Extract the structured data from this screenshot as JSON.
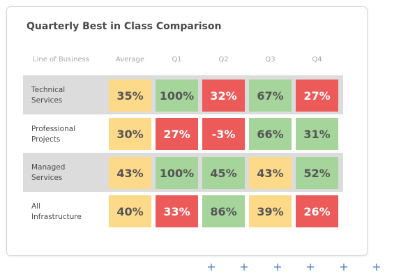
{
  "title": "Quarterly Best in Class Comparison",
  "headers": [
    "Line of Business",
    "Average",
    "Q1",
    "Q2",
    "Q3",
    "Q4"
  ],
  "colors": {
    "yellow": "#fdd98a",
    "green": "#a5d59a",
    "red": "#ec5a5a",
    "band": "#dcdcdc",
    "plus": "#4a7fc1"
  },
  "rows": [
    {
      "label": "Technical\nServices",
      "cells": [
        {
          "value": "35%",
          "status": "yellow"
        },
        {
          "value": "100%",
          "status": "green"
        },
        {
          "value": "32%",
          "status": "red"
        },
        {
          "value": "67%",
          "status": "green"
        },
        {
          "value": "27%",
          "status": "red"
        }
      ]
    },
    {
      "label": "Professional\nProjects",
      "cells": [
        {
          "value": "30%",
          "status": "yellow"
        },
        {
          "value": "27%",
          "status": "red"
        },
        {
          "value": "-3%",
          "status": "red"
        },
        {
          "value": "66%",
          "status": "green"
        },
        {
          "value": "31%",
          "status": "green"
        }
      ]
    },
    {
      "label": "Managed\nServices",
      "cells": [
        {
          "value": "43%",
          "status": "yellow"
        },
        {
          "value": "100%",
          "status": "green"
        },
        {
          "value": "45%",
          "status": "green"
        },
        {
          "value": "43%",
          "status": "yellow"
        },
        {
          "value": "52%",
          "status": "green"
        }
      ]
    },
    {
      "label": "All\nInfrastructure",
      "cells": [
        {
          "value": "40%",
          "status": "yellow"
        },
        {
          "value": "33%",
          "status": "red"
        },
        {
          "value": "86%",
          "status": "green"
        },
        {
          "value": "39%",
          "status": "yellow"
        },
        {
          "value": "26%",
          "status": "red"
        }
      ]
    }
  ],
  "footer_icons": [
    "plus-icon",
    "plus-icon",
    "plus-icon",
    "plus-icon",
    "plus-icon",
    "plus-icon"
  ]
}
